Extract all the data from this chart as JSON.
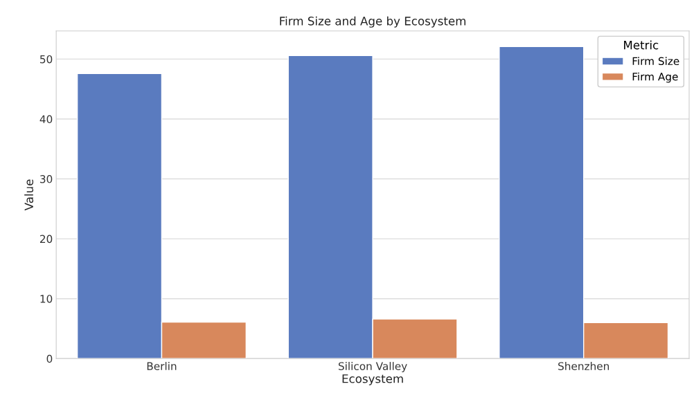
{
  "chart_data": {
    "type": "bar",
    "title": "Firm Size and Age by Ecosystem",
    "xlabel": "Ecosystem",
    "ylabel": "Value",
    "legend_title": "Metric",
    "categories": [
      "Berlin",
      "Silicon Valley",
      "Shenzhen"
    ],
    "series": [
      {
        "name": "Firm Size",
        "color": "#5a7bbf",
        "values": [
          47.6,
          50.6,
          52.1
        ]
      },
      {
        "name": "Firm Age",
        "color": "#d8885c",
        "values": [
          6.1,
          6.6,
          6.0
        ]
      }
    ],
    "ylim": [
      0,
      54.7
    ],
    "yticks": [
      0,
      10,
      20,
      30,
      40,
      50
    ],
    "grid": "y",
    "legend": "top right"
  }
}
